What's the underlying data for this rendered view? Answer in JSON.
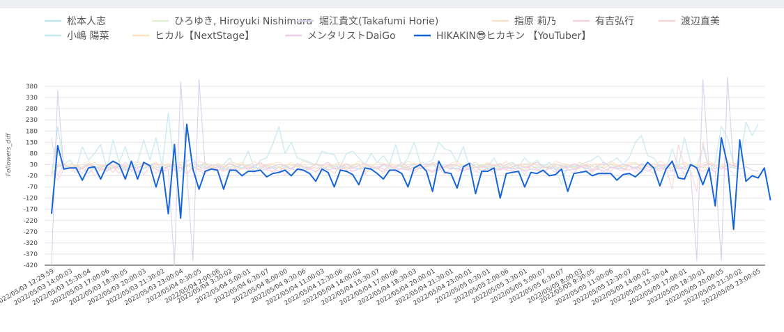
{
  "chart_data": {
    "type": "line",
    "ylabel": "Followers_diff",
    "y_ticks": [
      380,
      330,
      280,
      230,
      180,
      130,
      80,
      30,
      -20,
      -70,
      -120,
      -170,
      -220,
      -270,
      -320,
      -370,
      -420
    ],
    "ylim": [
      -420,
      380
    ],
    "grid": true,
    "legend_position": "top",
    "x_tick_labels": [
      "2022/05/03 12:29:59",
      "2022/05/03 14:00:03",
      "2022/05/03 15:30:04",
      "2022/05/03 17:00:06",
      "2022/05/03 18:30:05",
      "2022/05/03 20:00:03",
      "2022/05/03 21:30:02",
      "2022/05/03 23:00:04",
      "2022/05/04 0:30:05",
      "2022/05/04 2:00:06",
      "2022/05/04 3:30:02",
      "2022/05/04 5:00:01",
      "2022/05/04 6:30:07",
      "2022/05/04 8:00:00",
      "2022/05/04 9:30:06",
      "2022/05/04 11:00:03",
      "2022/05/04 12:30:06",
      "2022/05/04 14:00:02",
      "2022/05/04 15:30:07",
      "2022/05/04 17:00:06",
      "2022/05/04 18:30:03",
      "2022/05/04 20:00:01",
      "2022/05/04 21:30:01",
      "2022/05/04 23:00:01",
      "2022/05/05 0:30:01",
      "2022/05/05 2:00:06",
      "2022/05/05 3:30:01",
      "2022/05/05 5:00:07",
      "2022/05/05 6:30:07",
      "2022/05/05 8:00:03",
      "2022/05/05 9:30:05",
      "2022/05/05 11:00:06",
      "2022/05/05 12:30:07",
      "2022/05/05 14:00:02",
      "2022/05/05 15:30:04",
      "2022/05/05 17:00:01",
      "2022/05/05 18:30:01",
      "2022/05/05 20:00:05",
      "2022/05/05 21:30:02",
      "2022/05/05 23:00:05"
    ],
    "series": [
      {
        "name": "松本人志",
        "color": "#bfe6f0",
        "width": 1.2,
        "values": [
          -20,
          200,
          30,
          50,
          10,
          110,
          50,
          80,
          120,
          10,
          140,
          40,
          110,
          20,
          40,
          140,
          50,
          150,
          20,
          260,
          10,
          0,
          45,
          55,
          20,
          40,
          10,
          20,
          30,
          60,
          10,
          30,
          90,
          10,
          50,
          60,
          120,
          200,
          80,
          130,
          60,
          50,
          40,
          30,
          90,
          80,
          75,
          20,
          80,
          90,
          60,
          30,
          80,
          40,
          70,
          30,
          120,
          20,
          60,
          130,
          40,
          35,
          50,
          130,
          100,
          90,
          40,
          110,
          20,
          30,
          20,
          20,
          60,
          10,
          30,
          40,
          20,
          60,
          30,
          50,
          20,
          40,
          10,
          -60,
          30,
          20,
          30,
          40,
          50,
          70,
          30,
          40,
          60,
          30,
          60,
          130,
          160,
          70,
          60,
          20,
          10,
          100,
          20,
          150,
          40,
          20,
          110,
          10,
          40,
          200,
          150,
          30,
          40,
          220,
          160,
          210
        ]
      },
      {
        "name": "ひろゆき, Hiroyuki Nishimura",
        "color": "#e3efcf",
        "width": 1.2,
        "values": [
          10,
          30,
          20,
          15,
          25,
          10,
          30,
          20,
          15,
          10,
          25,
          20,
          15,
          30,
          20,
          10,
          25,
          15,
          20,
          30,
          10,
          15,
          20,
          25,
          10,
          20,
          15,
          30,
          25,
          10,
          20,
          15,
          25,
          10,
          20,
          30,
          15,
          20,
          10,
          25,
          30,
          15,
          20,
          10,
          25,
          20,
          15,
          30,
          10,
          20,
          25,
          15,
          20,
          10,
          30,
          15,
          20,
          25,
          10,
          20,
          15,
          25,
          30,
          10,
          20,
          15,
          25,
          20,
          10,
          30,
          15,
          20,
          25,
          10,
          20,
          15,
          30,
          25,
          10,
          20,
          15,
          20,
          25,
          10,
          30,
          15,
          20,
          25,
          10,
          20,
          15,
          30,
          20,
          10,
          25,
          15,
          20,
          30,
          10,
          25,
          20,
          15,
          20,
          10,
          25,
          30,
          15,
          20,
          10,
          25,
          20,
          15,
          30
        ]
      },
      {
        "name": "堀江貴文(Takafumi Horie)",
        "color": "#d6cfeb",
        "width": 1.2,
        "values": [
          -420,
          360,
          10,
          20,
          5,
          15,
          -10,
          20,
          10,
          0,
          15,
          20,
          5,
          10,
          -5,
          15,
          20,
          10,
          0,
          5,
          -420,
          400,
          0,
          -400,
          410,
          15,
          10,
          20,
          5,
          10,
          0,
          15,
          10,
          20,
          5,
          10,
          15,
          0,
          20,
          10,
          5,
          15,
          10,
          0,
          20,
          5,
          15,
          10,
          20,
          0,
          10,
          15,
          5,
          20,
          10,
          0,
          15,
          10,
          5,
          20,
          15,
          10,
          0,
          5,
          20,
          10,
          15,
          5,
          10,
          20,
          0,
          15,
          10,
          5,
          20,
          10,
          15,
          0,
          10,
          5,
          20,
          15,
          10,
          0,
          5,
          10,
          20,
          15,
          5,
          10,
          0,
          20,
          15,
          10,
          5,
          20,
          10,
          0,
          15,
          10,
          20,
          5,
          15,
          10,
          0,
          -400,
          410,
          10,
          0,
          -400,
          420,
          15,
          10,
          20,
          5,
          0
        ]
      },
      {
        "name": "指原 莉乃",
        "color": "#fbe1c7",
        "width": 1.2,
        "values": [
          30,
          40,
          20,
          35,
          25,
          30,
          45,
          20,
          30,
          25,
          40,
          30,
          20,
          35,
          45,
          25,
          30,
          40,
          20,
          35,
          25,
          40,
          30,
          20,
          45,
          35,
          30,
          25,
          20,
          40,
          35,
          30,
          25,
          45,
          20,
          30,
          35,
          40,
          25,
          30,
          20,
          45,
          35,
          30,
          25,
          40,
          20,
          30,
          35,
          25,
          45,
          30,
          20,
          40,
          35,
          25,
          30,
          20,
          45,
          30,
          35,
          25,
          40,
          30,
          20,
          35,
          45,
          25,
          30,
          40,
          20,
          35,
          30,
          25,
          45,
          20,
          30,
          35,
          40,
          25,
          30,
          20,
          45,
          35,
          30,
          25,
          40,
          20,
          30,
          35,
          25,
          45,
          30,
          20,
          40,
          35,
          25,
          30,
          20,
          45,
          30,
          35,
          25,
          40,
          30,
          20,
          35,
          45,
          25,
          30,
          40,
          20,
          35
        ]
      },
      {
        "name": "有吉弘行",
        "color": "#f7d2dd",
        "width": 1.2,
        "values": [
          0,
          -40,
          10,
          20,
          -10,
          15,
          30,
          -20,
          10,
          5,
          20,
          -10,
          25,
          0,
          15,
          -15,
          20,
          10,
          -5,
          25,
          0,
          15,
          -10,
          20,
          5,
          -15,
          25,
          10,
          0,
          20,
          -5,
          15,
          10,
          -10,
          25,
          5,
          0,
          20,
          -15,
          10,
          25,
          0,
          15,
          -5,
          20,
          10,
          -10,
          25,
          5,
          0,
          15,
          -15,
          20,
          10,
          0,
          25,
          -5,
          15,
          10,
          -10,
          20,
          5,
          0,
          25,
          -15,
          15,
          10,
          0,
          20,
          -5,
          25,
          10,
          -10,
          15,
          5,
          0,
          20,
          -15,
          25,
          10,
          0,
          15,
          -5,
          20,
          10,
          -10,
          25,
          5,
          0,
          15,
          -15,
          20,
          10,
          0,
          25,
          -5,
          15,
          10,
          -10,
          20,
          5,
          0,
          25,
          -15,
          15,
          10,
          0,
          20,
          -5,
          25,
          10,
          -10
        ]
      },
      {
        "name": "渡辺直美",
        "color": "#f9d4d4",
        "width": 1.2,
        "values": [
          150,
          -20,
          30,
          10,
          20,
          -10,
          25,
          15,
          5,
          20,
          -5,
          30,
          10,
          20,
          0,
          15,
          25,
          -10,
          20,
          10,
          5,
          30,
          -15,
          20,
          10,
          0,
          25,
          5,
          15,
          -5,
          20,
          10,
          25,
          0,
          15,
          30,
          -10,
          20,
          5,
          15,
          25,
          0,
          10,
          20,
          -5,
          30,
          15,
          5,
          20,
          10,
          25,
          0,
          15,
          20,
          -10,
          30,
          5,
          15,
          20,
          0,
          25,
          10,
          -5,
          20,
          15,
          30,
          0,
          10,
          25,
          5,
          -15,
          20,
          15,
          10,
          30,
          0,
          20,
          5,
          25,
          10,
          -10,
          15,
          20,
          0,
          30,
          5,
          15,
          25,
          -5,
          20,
          10,
          0,
          25,
          15,
          5,
          20,
          -10,
          30,
          10,
          0,
          15,
          -80,
          120,
          20,
          5,
          -90,
          130,
          15,
          10,
          20,
          5,
          30,
          10
        ]
      },
      {
        "name": "小嶋 陽菜",
        "color": "#c5e9ee",
        "width": 1.2,
        "values": [
          20,
          30,
          10,
          25,
          15,
          20,
          35,
          10,
          25,
          20,
          15,
          30,
          10,
          20,
          25,
          15,
          30,
          20,
          10,
          25,
          20,
          15,
          30,
          10,
          25,
          20,
          15,
          35,
          10,
          20,
          25,
          15,
          30,
          20,
          10,
          25,
          20,
          15,
          30,
          10,
          25,
          20,
          15,
          35,
          10,
          20,
          25,
          15,
          30,
          20,
          10,
          25,
          20,
          15,
          30,
          10,
          25,
          20,
          15,
          35,
          10,
          20,
          25,
          15,
          30,
          20,
          10,
          25,
          20,
          15,
          30,
          10,
          25,
          20,
          15,
          35,
          10,
          20,
          25,
          15,
          30,
          20,
          10,
          25,
          20,
          15,
          30,
          10,
          25,
          20,
          15,
          35,
          10,
          20,
          25,
          15,
          30,
          20,
          10,
          25,
          20,
          15,
          30,
          10,
          25,
          20,
          15,
          35,
          10,
          20,
          25,
          15,
          30
        ]
      },
      {
        "name": "ヒカル【NextStage】",
        "color": "#fbe3bf",
        "width": 1.2,
        "values": [
          15,
          25,
          35,
          20,
          30,
          15,
          25,
          40,
          20,
          30,
          15,
          35,
          25,
          20,
          30,
          40,
          15,
          25,
          35,
          20,
          30,
          15,
          25,
          40,
          20,
          30,
          15,
          35,
          25,
          20,
          30,
          40,
          15,
          25,
          35,
          20,
          30,
          15,
          25,
          40,
          20,
          30,
          15,
          35,
          25,
          20,
          30,
          40,
          15,
          25,
          35,
          20,
          30,
          15,
          25,
          40,
          20,
          30,
          15,
          35,
          25,
          20,
          30,
          40,
          15,
          25,
          35,
          20,
          30,
          15,
          25,
          40,
          20,
          30,
          15,
          35,
          25,
          20,
          30,
          40,
          15,
          25,
          35,
          20,
          30,
          15,
          25,
          40,
          20,
          30,
          15,
          35,
          25,
          20,
          30,
          40,
          15,
          25,
          35,
          20,
          30,
          15,
          25,
          40,
          20,
          30,
          15,
          35,
          25,
          20,
          30,
          40,
          15
        ]
      },
      {
        "name": "メンタリストDaiGo",
        "color": "#ebcde6",
        "width": 1.2,
        "values": [
          -10,
          20,
          30,
          15,
          25,
          10,
          35,
          20,
          15,
          30,
          25,
          10,
          40,
          20,
          15,
          30,
          25,
          35,
          10,
          20,
          30,
          15,
          25,
          40,
          20,
          10,
          30,
          25,
          15,
          35,
          20,
          30,
          10,
          25,
          40,
          15,
          20,
          30,
          25,
          10,
          35,
          20,
          15,
          30,
          25,
          40,
          10,
          20,
          30,
          15,
          25,
          35,
          20,
          10,
          30,
          25,
          15,
          40,
          20,
          30,
          10,
          25,
          35,
          15,
          20,
          30,
          25,
          10,
          40,
          20,
          15,
          30,
          25,
          35,
          10,
          20,
          30,
          15,
          25,
          40,
          20,
          10,
          30,
          25,
          15,
          35,
          20,
          30,
          10,
          25,
          40,
          15,
          20,
          30,
          25,
          10,
          35,
          20,
          15,
          30,
          25,
          40,
          10,
          20,
          30,
          15,
          25,
          35,
          20,
          10,
          30,
          25,
          15
        ]
      },
      {
        "name": "HIKAKIN😎ヒカキン 【YouTuber】",
        "color": "#1565d8",
        "width": 2,
        "values": [
          -190,
          115,
          10,
          15,
          15,
          -40,
          15,
          20,
          -35,
          25,
          45,
          30,
          -35,
          45,
          -35,
          40,
          25,
          -70,
          20,
          -190,
          120,
          -210,
          210,
          10,
          -80,
          0,
          10,
          5,
          -80,
          5,
          5,
          -20,
          0,
          0,
          5,
          -25,
          -10,
          -5,
          5,
          -20,
          10,
          5,
          -10,
          -45,
          10,
          -5,
          -70,
          5,
          0,
          -15,
          -60,
          15,
          10,
          -10,
          -35,
          5,
          5,
          -10,
          -70,
          15,
          30,
          0,
          -90,
          45,
          -5,
          -10,
          -75,
          20,
          35,
          -100,
          0,
          0,
          15,
          -120,
          -10,
          -5,
          0,
          -70,
          -5,
          -10,
          5,
          -20,
          -15,
          10,
          -90,
          -10,
          -5,
          0,
          -20,
          -10,
          -10,
          -10,
          -40,
          -15,
          -10,
          -25,
          0,
          40,
          15,
          -65,
          10,
          45,
          -30,
          -35,
          30,
          15,
          -60,
          15,
          -155,
          150,
          30,
          -260,
          140,
          -45,
          -20,
          -30,
          15,
          -130
        ]
      }
    ]
  }
}
